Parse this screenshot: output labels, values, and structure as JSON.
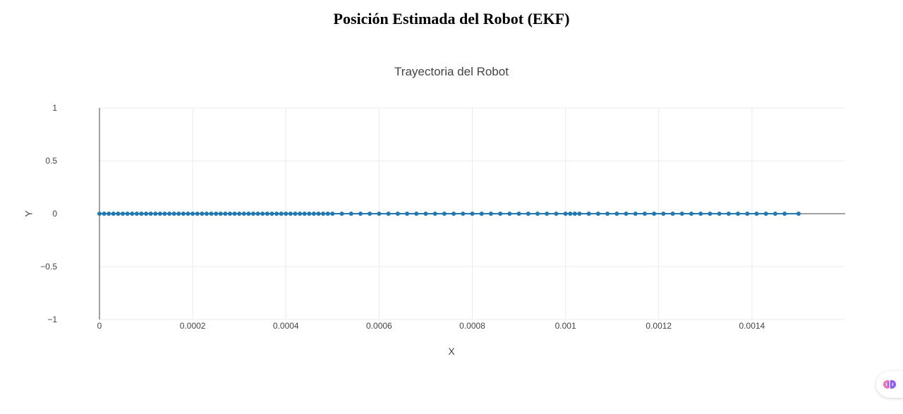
{
  "page": {
    "title": "Posición Estimada del Robot (EKF)"
  },
  "assistant": {
    "icon": "brain-icon",
    "colors": [
      "#f472b6",
      "#8b5cf6",
      "#6366f1"
    ]
  },
  "chart_data": {
    "type": "scatter",
    "mode": "lines+markers",
    "title": "Trayectoria del Robot",
    "xlabel": "X",
    "ylabel": "Y",
    "xlim": [
      0,
      0.0016
    ],
    "ylim": [
      -1,
      1
    ],
    "x_ticks": [
      0,
      0.0002,
      0.0004,
      0.0006,
      0.0008,
      0.001,
      0.0012,
      0.0014
    ],
    "x_tick_labels": [
      "0",
      "0.0002",
      "0.0004",
      "0.0006",
      "0.0008",
      "0.001",
      "0.0012",
      "0.0014"
    ],
    "y_ticks": [
      -1,
      -0.5,
      0,
      0.5,
      1
    ],
    "y_tick_labels": [
      "−1",
      "−0.5",
      "0",
      "0.5",
      "1"
    ],
    "grid": true,
    "legend": "none",
    "series_color": "#1f77b4",
    "x": [
      0,
      1e-05,
      2e-05,
      3e-05,
      4e-05,
      5e-05,
      6e-05,
      7e-05,
      8e-05,
      9e-05,
      0.0001,
      0.00011,
      0.00012,
      0.00013,
      0.00014,
      0.00015,
      0.00016,
      0.00017,
      0.00018,
      0.00019,
      0.0002,
      0.00021,
      0.00022,
      0.00023,
      0.00024,
      0.00025,
      0.00026,
      0.00027,
      0.00028,
      0.00029,
      0.0003,
      0.00031,
      0.00032,
      0.00033,
      0.00034,
      0.00035,
      0.00036,
      0.00037,
      0.00038,
      0.00039,
      0.0004,
      0.00041,
      0.00042,
      0.00043,
      0.00044,
      0.00045,
      0.00046,
      0.00047,
      0.00048,
      0.00049,
      0.0005,
      0.00052,
      0.00054,
      0.00056,
      0.00058,
      0.0006,
      0.00062,
      0.00064,
      0.00066,
      0.00068,
      0.0007,
      0.00072,
      0.00074,
      0.00076,
      0.00078,
      0.0008,
      0.00082,
      0.00084,
      0.00086,
      0.00088,
      0.0009,
      0.00092,
      0.00094,
      0.00096,
      0.00098,
      0.001,
      0.00101,
      0.00102,
      0.00103,
      0.00105,
      0.00107,
      0.00109,
      0.00111,
      0.00113,
      0.00115,
      0.00117,
      0.00119,
      0.00121,
      0.00123,
      0.00125,
      0.00127,
      0.00129,
      0.00131,
      0.00133,
      0.00135,
      0.00137,
      0.00139,
      0.00141,
      0.00143,
      0.00145,
      0.00147,
      0.0015
    ],
    "y": [
      0,
      0,
      0,
      0,
      0,
      0,
      0,
      0,
      0,
      0,
      0,
      0,
      0,
      0,
      0,
      0,
      0,
      0,
      0,
      0,
      0,
      0,
      0,
      0,
      0,
      0,
      0,
      0,
      0,
      0,
      0,
      0,
      0,
      0,
      0,
      0,
      0,
      0,
      0,
      0,
      0,
      0,
      0,
      0,
      0,
      0,
      0,
      0,
      0,
      0,
      0,
      0,
      0,
      0,
      0,
      0,
      0,
      0,
      0,
      0,
      0,
      0,
      0,
      0,
      0,
      0,
      0,
      0,
      0,
      0,
      0,
      0,
      0,
      0,
      0,
      0,
      0,
      0,
      0,
      0,
      0,
      0,
      0,
      0,
      0,
      0,
      0,
      0,
      0,
      0,
      0,
      0,
      0,
      0,
      0,
      0,
      0,
      0,
      0,
      0,
      0,
      0
    ]
  }
}
